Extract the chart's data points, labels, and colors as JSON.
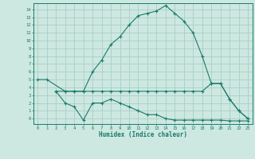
{
  "title": "",
  "xlabel": "Humidex (Indice chaleur)",
  "background_color": "#cde8e0",
  "grid_color": "#a8cec6",
  "line_color": "#1a7a6e",
  "xlim": [
    -0.5,
    23.5
  ],
  "ylim": [
    -0.7,
    14.8
  ],
  "xticks": [
    0,
    1,
    2,
    3,
    4,
    5,
    6,
    7,
    8,
    9,
    10,
    11,
    12,
    13,
    14,
    15,
    16,
    17,
    18,
    19,
    20,
    21,
    22,
    23
  ],
  "yticks": [
    0,
    1,
    2,
    3,
    4,
    5,
    6,
    7,
    8,
    9,
    10,
    11,
    12,
    13,
    14
  ],
  "yticklabels": [
    "0",
    "1",
    "2",
    "3",
    "4",
    "5",
    "6",
    "7",
    "8",
    "9",
    "10",
    "11",
    "12",
    "13",
    "14"
  ],
  "series": [
    {
      "x": [
        0,
        1,
        3,
        4,
        5,
        6,
        7,
        8,
        9,
        10,
        11,
        12,
        13,
        14,
        15,
        16,
        17,
        18,
        19,
        20,
        21,
        22,
        23
      ],
      "y": [
        5,
        5,
        3.5,
        3.5,
        3.5,
        6,
        7.5,
        9.5,
        10.5,
        12,
        13.2,
        13.5,
        13.8,
        14.5,
        13.5,
        12.5,
        11,
        8,
        4.5,
        4.5,
        2.5,
        1,
        0
      ],
      "marker": "+"
    },
    {
      "x": [
        2,
        3,
        4,
        5,
        6,
        7,
        8,
        9,
        10,
        11,
        12,
        13,
        14,
        15,
        16,
        17,
        18,
        19,
        20,
        21,
        22,
        23
      ],
      "y": [
        3.5,
        3.5,
        3.5,
        3.5,
        3.5,
        3.5,
        3.5,
        3.5,
        3.5,
        3.5,
        3.5,
        3.5,
        3.5,
        3.5,
        3.5,
        3.5,
        3.5,
        4.5,
        4.5,
        2.5,
        1,
        0
      ],
      "marker": "+"
    },
    {
      "x": [
        2,
        3,
        4,
        5,
        6,
        7,
        8,
        9,
        10,
        11,
        12,
        13,
        14,
        15,
        16,
        17,
        18,
        19,
        20,
        21,
        22,
        23
      ],
      "y": [
        3.5,
        2,
        1.5,
        -0.2,
        2,
        2,
        2.5,
        2,
        1.5,
        1,
        0.5,
        0.5,
        0,
        -0.2,
        -0.2,
        -0.2,
        -0.2,
        -0.2,
        -0.2,
        -0.3,
        -0.3,
        -0.3
      ],
      "marker": "+"
    }
  ]
}
